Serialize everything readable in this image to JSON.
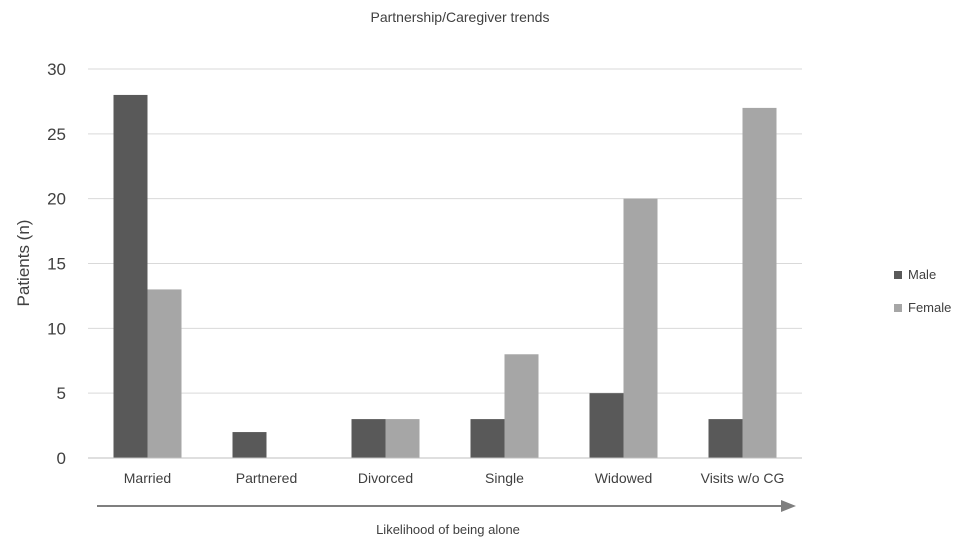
{
  "chart_data": {
    "type": "bar",
    "title": "Partnership/Caregiver trends",
    "ylabel": "Patients (n)",
    "xlabel": "Likelihood of being alone",
    "categories": [
      "Married",
      "Partnered",
      "Divorced",
      "Single",
      "Widowed",
      "Visits w/o CG"
    ],
    "series": [
      {
        "name": "Male",
        "values": [
          28,
          2,
          3,
          3,
          5,
          3
        ],
        "color": "#595959"
      },
      {
        "name": "Female",
        "values": [
          13,
          0,
          3,
          8,
          20,
          27
        ],
        "color": "#a6a6a6"
      }
    ],
    "ylim": [
      0,
      30
    ],
    "yticks": [
      "0",
      "5",
      "10",
      "15",
      "20",
      "25",
      "30"
    ],
    "grid": true,
    "legend_position": "right",
    "arrow_color": "#7f7f7f"
  }
}
